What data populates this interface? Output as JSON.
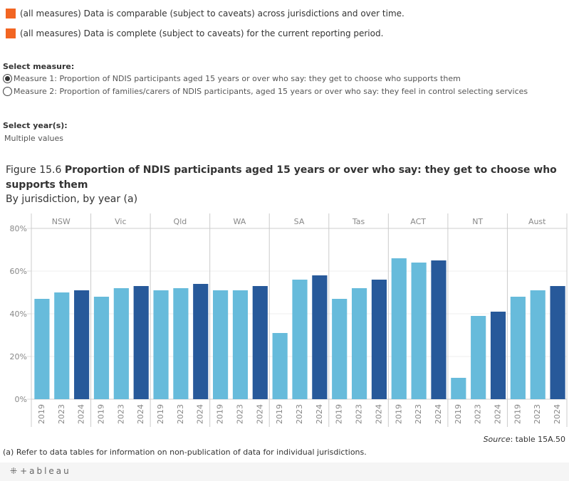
{
  "caveats": [
    {
      "icon": "orange-square-icon",
      "color": "#f26522",
      "text": "(all measures) Data is comparable (subject to caveats) across jurisdictions and over time."
    },
    {
      "icon": "orange-square-icon",
      "color": "#f26522",
      "text": "(all measures) Data is complete (subject to caveats) for the current reporting period."
    }
  ],
  "measure_selector": {
    "label": "Select measure:",
    "options": [
      {
        "text": "Measure 1: Proportion of NDIS participants aged 15 years or over who say: they get to choose who supports them",
        "selected": true
      },
      {
        "text": "Measure 2: Proportion of families/carers of NDIS participants, aged 15 years or over who say: they feel in control selecting services",
        "selected": false
      }
    ]
  },
  "year_selector": {
    "label": "Select year(s):",
    "value": "Multiple values"
  },
  "figure": {
    "number": "Figure 15.6",
    "title": "Proportion of NDIS participants aged 15 years or over who say: they get to choose who supports them",
    "subtitle": "By jurisdiction, by year (a)"
  },
  "chart_data": {
    "type": "bar",
    "title": "Proportion of NDIS participants aged 15 years or over who say: they get to choose who supports them",
    "subtitle": "By jurisdiction, by year (a)",
    "xlabel": "",
    "ylabel": "",
    "ylim": [
      0,
      80
    ],
    "yticks": [
      0,
      20,
      40,
      60,
      80
    ],
    "ytick_labels": [
      "0%",
      "20%",
      "40%",
      "60%",
      "80%"
    ],
    "grid": true,
    "legend": "none",
    "panels": [
      "NSW",
      "Vic",
      "Qld",
      "WA",
      "SA",
      "Tas",
      "ACT",
      "NT",
      "Aust"
    ],
    "years": [
      "2019",
      "2023",
      "2024"
    ],
    "colors": {
      "2019": "#67bbdb",
      "2023": "#67bbdb",
      "2024": "#27599a"
    },
    "values": {
      "NSW": [
        47,
        50,
        51
      ],
      "Vic": [
        48,
        52,
        53
      ],
      "Qld": [
        51,
        52,
        54
      ],
      "WA": [
        51,
        51,
        53
      ],
      "SA": [
        31,
        56,
        58
      ],
      "Tas": [
        47,
        52,
        56
      ],
      "ACT": [
        66,
        64,
        65
      ],
      "NT": [
        10,
        39,
        41
      ],
      "Aust": [
        48,
        51,
        53
      ]
    },
    "units": "%"
  },
  "source": {
    "label": "Source",
    "text": ": table 15A.50"
  },
  "note": "(a) Refer to data tables for information on non-publication of data for individual jurisdictions.",
  "footer": {
    "logo_text": "+ableau"
  }
}
